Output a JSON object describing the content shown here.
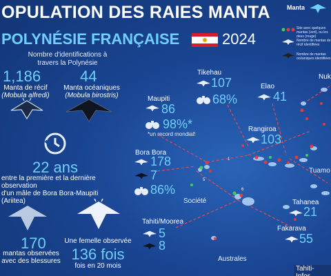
{
  "header": {
    "title_line1": "OPULATION DES RAIES MANTA",
    "title_line2": "POLYNÉSIE FRANÇAISE",
    "year": "2024",
    "brand": "Manta"
  },
  "legend": {
    "items": [
      {
        "label": "Site avec quelques mantas (vert), ou les deux (rouge)"
      },
      {
        "label": "Nombre de mantas de récif identifiées"
      },
      {
        "label": "Nombre de mantas océaniques identifiées"
      }
    ]
  },
  "stats": {
    "identifications_label": "Nombre d'identifications à travers la Polynésie",
    "reef": {
      "count": "1,186",
      "name": "Manta de récif",
      "latin": "(Mobula alfredi)"
    },
    "oceanic": {
      "count": "44",
      "name": "Manta océaniques",
      "latin": "(Mobula birostris)"
    },
    "years": {
      "value": "22 ans",
      "text_line1": "entre la première et la dernière observation",
      "text_line2": "d'un mâle de Bora Bora-Maupiti (Ariitea)"
    },
    "injured": {
      "value": "170",
      "text_line1": "mantas observées",
      "text_line2": "avec des blessures"
    },
    "female": {
      "label": "Une femelle observée",
      "value": "136 fois",
      "sub": "fois en 20 mois"
    }
  },
  "islands": {
    "maupiti": {
      "name": "Maupiti",
      "reef": "86",
      "pct": "98%*",
      "note": "*un record mondial!"
    },
    "bora": {
      "name": "Bora Bora",
      "reef": "178",
      "oceanic": "7",
      "pct": "86%"
    },
    "tikehau": {
      "name": "Tikehau",
      "reef": "107",
      "pct": "68%"
    },
    "elao": {
      "name": "Elao",
      "reef": "41"
    },
    "rangiroa": {
      "name": "Rangiroa",
      "reef": "103"
    },
    "tahiti": {
      "name": "Tahiti/Moorea",
      "reef": "5",
      "oceanic": "8"
    },
    "tahanea": {
      "name": "Tahanea",
      "reef": "21"
    },
    "fakarava": {
      "name": "Fakarava",
      "reef": "55"
    },
    "nuku": {
      "name": "Nuk"
    },
    "tuamotu": {
      "name": "Tuamo"
    },
    "societe": {
      "name": "Société"
    },
    "australes": {
      "name": "Australes"
    }
  },
  "credit": "Tahiti-Infos",
  "colors": {
    "accent": "#6fd0ff",
    "green_site": "#3ccf5a",
    "red_site": "#e23b3b",
    "bg": "#1a4592"
  }
}
